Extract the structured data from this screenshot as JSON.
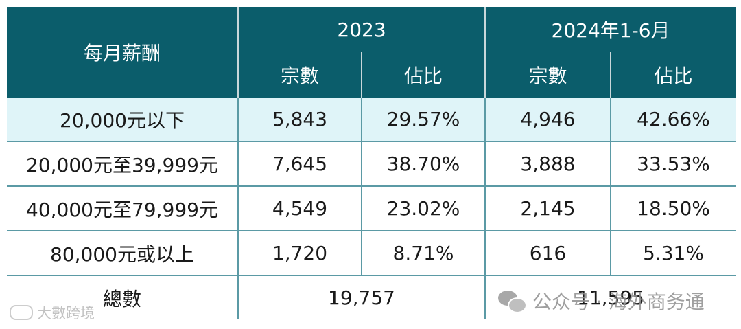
{
  "header": {
    "row_label": "每月薪酬",
    "periods": [
      "2023",
      "2024年1-6月"
    ],
    "sub_cols": [
      "宗數",
      "佔比",
      "宗數",
      "佔比"
    ]
  },
  "rows": [
    {
      "label": "20,000元以下",
      "c1": "5,843",
      "c2": "29.57%",
      "c3": "4,946",
      "c4": "42.66%"
    },
    {
      "label": "20,000元至39,999元",
      "c1": "7,645",
      "c2": "38.70%",
      "c3": "3,888",
      "c4": "33.53%"
    },
    {
      "label": "40,000元至79,999元",
      "c1": "4,549",
      "c2": "23.02%",
      "c3": "2,145",
      "c4": "18.50%"
    },
    {
      "label": "80,000元或以上",
      "c1": "1,720",
      "c2": "8.71%",
      "c3": "616",
      "c4": "5.31%"
    }
  ],
  "total": {
    "label": "總數",
    "v2023": "19,757",
    "v2024": "11,595"
  },
  "watermarks": {
    "left": "大數跨境",
    "right": "公众号 · 海外商务通"
  },
  "colors": {
    "header_bg": "#0b5d6b",
    "highlight_row": "#dff4f8",
    "grid": "#5b9aa5"
  }
}
